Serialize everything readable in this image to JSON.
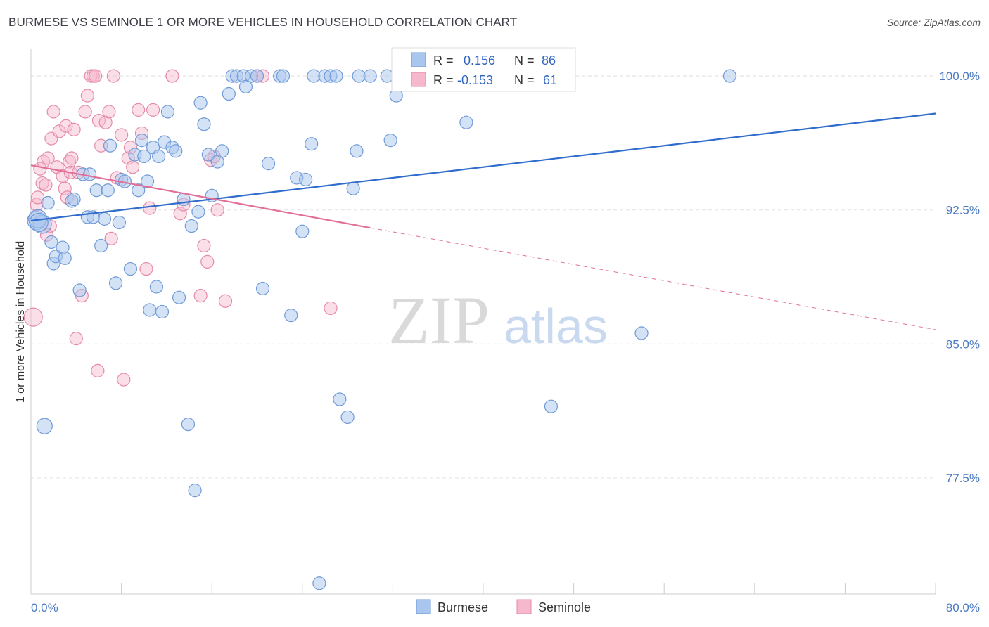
{
  "header": {
    "title": "BURMESE VS SEMINOLE 1 OR MORE VEHICLES IN HOUSEHOLD CORRELATION CHART",
    "source": "Source: ZipAtlas.com"
  },
  "watermark": {
    "zip": "ZIP",
    "atlas": "atlas"
  },
  "legend": {
    "rows": [
      {
        "r_label": "R =",
        "r_value": "0.156",
        "n_label": "N =",
        "n_value": "86"
      },
      {
        "r_label": "R =",
        "r_value": "-0.153",
        "n_label": "N =",
        "n_value": "61"
      }
    ]
  },
  "colors": {
    "burmese_fill": "#a9c6ee",
    "burmese_stroke": "#6f9ad8",
    "burmese_line": "#2f6ccc",
    "seminole_fill": "#f6b8cc",
    "seminole_stroke": "#e58aa8",
    "seminole_line": "#e0709a",
    "grid": "#e3e3e3",
    "tick_text": "#4a79c4"
  },
  "chart_data": {
    "type": "scatter",
    "title": "BURMESE VS SEMINOLE 1 OR MORE VEHICLES IN HOUSEHOLD CORRELATION CHART",
    "xlabel": "",
    "ylabel": "1 or more Vehicles in Household",
    "xlim": [
      0,
      80
    ],
    "ylim": [
      71,
      101.5
    ],
    "x_tick_labels": [
      "0.0%",
      "80.0%"
    ],
    "y_ticks": [
      77.5,
      85.0,
      92.5,
      100.0
    ],
    "y_tick_labels": [
      "77.5%",
      "85.0%",
      "92.5%",
      "100.0%"
    ],
    "grid": true,
    "legend_position": "top-center",
    "series": [
      {
        "name": "Burmese",
        "R": 0.156,
        "N": 86,
        "trend": {
          "x0": 0,
          "y0": 91.9,
          "x1": 80,
          "y1": 97.9
        },
        "points": [
          [
            0.5,
            91.9
          ],
          [
            1.0,
            91.7
          ],
          [
            0.6,
            92.0
          ],
          [
            1.5,
            92.9
          ],
          [
            1.8,
            90.7
          ],
          [
            2.0,
            89.5
          ],
          [
            2.2,
            89.9
          ],
          [
            2.8,
            90.4
          ],
          [
            3.0,
            89.8
          ],
          [
            3.6,
            93.0
          ],
          [
            3.8,
            93.1
          ],
          [
            4.3,
            88.0
          ],
          [
            4.6,
            94.5
          ],
          [
            5.0,
            92.1
          ],
          [
            5.2,
            94.5
          ],
          [
            5.5,
            92.1
          ],
          [
            5.8,
            93.6
          ],
          [
            6.2,
            90.5
          ],
          [
            6.5,
            92.0
          ],
          [
            6.8,
            93.6
          ],
          [
            7.0,
            96.1
          ],
          [
            7.5,
            88.4
          ],
          [
            7.8,
            91.8
          ],
          [
            8.0,
            94.2
          ],
          [
            8.3,
            94.1
          ],
          [
            8.8,
            89.2
          ],
          [
            9.2,
            95.6
          ],
          [
            9.5,
            93.6
          ],
          [
            9.8,
            96.4
          ],
          [
            10.0,
            95.5
          ],
          [
            10.3,
            94.1
          ],
          [
            10.5,
            86.9
          ],
          [
            10.8,
            96.0
          ],
          [
            11.1,
            88.2
          ],
          [
            11.3,
            95.5
          ],
          [
            11.6,
            86.8
          ],
          [
            11.8,
            96.3
          ],
          [
            12.1,
            98.0
          ],
          [
            12.5,
            96.0
          ],
          [
            12.8,
            95.8
          ],
          [
            13.1,
            87.6
          ],
          [
            13.5,
            93.1
          ],
          [
            13.9,
            80.5
          ],
          [
            14.2,
            91.6
          ],
          [
            14.5,
            76.8
          ],
          [
            14.8,
            92.4
          ],
          [
            15.0,
            98.5
          ],
          [
            15.3,
            97.3
          ],
          [
            15.7,
            95.6
          ],
          [
            16.0,
            93.3
          ],
          [
            16.5,
            95.2
          ],
          [
            16.9,
            95.8
          ],
          [
            17.5,
            99.0
          ],
          [
            17.8,
            100.0
          ],
          [
            18.2,
            100.0
          ],
          [
            18.8,
            100.0
          ],
          [
            19.0,
            99.4
          ],
          [
            19.5,
            100.0
          ],
          [
            20.0,
            100.0
          ],
          [
            20.5,
            88.1
          ],
          [
            21.0,
            95.1
          ],
          [
            22.0,
            100.0
          ],
          [
            22.3,
            100.0
          ],
          [
            23.0,
            86.6
          ],
          [
            23.5,
            94.3
          ],
          [
            24.0,
            91.3
          ],
          [
            24.3,
            94.2
          ],
          [
            24.8,
            96.2
          ],
          [
            25.0,
            100.0
          ],
          [
            25.5,
            71.6
          ],
          [
            26.0,
            100.0
          ],
          [
            26.5,
            100.0
          ],
          [
            27.0,
            100.0
          ],
          [
            27.3,
            81.9
          ],
          [
            28.0,
            80.9
          ],
          [
            28.5,
            93.7
          ],
          [
            28.8,
            95.8
          ],
          [
            29.0,
            100.0
          ],
          [
            30.0,
            100.0
          ],
          [
            31.5,
            100.0
          ],
          [
            31.8,
            96.4
          ],
          [
            32.3,
            98.9
          ],
          [
            38.5,
            97.4
          ],
          [
            46.0,
            81.5
          ],
          [
            54.0,
            85.6
          ],
          [
            61.8,
            100.0
          ],
          [
            1.2,
            80.4
          ],
          [
            0.7,
            91.8
          ]
        ]
      },
      {
        "name": "Seminole",
        "R": -0.153,
        "N": 61,
        "trend_solid": {
          "x0": 0,
          "y0": 95.0,
          "x1": 30,
          "y1": 91.5
        },
        "trend_dashed": {
          "x0": 30,
          "y0": 91.5,
          "x1": 80,
          "y1": 85.8
        },
        "points": [
          [
            0.2,
            86.5
          ],
          [
            0.5,
            92.8
          ],
          [
            0.6,
            93.2
          ],
          [
            0.8,
            94.8
          ],
          [
            1.0,
            94.0
          ],
          [
            1.1,
            95.2
          ],
          [
            1.3,
            93.9
          ],
          [
            1.5,
            95.4
          ],
          [
            1.7,
            91.6
          ],
          [
            1.8,
            96.5
          ],
          [
            2.0,
            98.0
          ],
          [
            2.3,
            94.9
          ],
          [
            2.5,
            96.9
          ],
          [
            2.8,
            94.4
          ],
          [
            3.0,
            93.7
          ],
          [
            3.1,
            97.2
          ],
          [
            3.4,
            95.2
          ],
          [
            3.5,
            94.6
          ],
          [
            3.6,
            95.4
          ],
          [
            3.8,
            97.0
          ],
          [
            4.0,
            85.3
          ],
          [
            4.2,
            94.6
          ],
          [
            4.5,
            87.7
          ],
          [
            4.8,
            98.0
          ],
          [
            5.0,
            98.9
          ],
          [
            5.3,
            100.0
          ],
          [
            5.5,
            100.0
          ],
          [
            5.7,
            100.0
          ],
          [
            5.9,
            83.5
          ],
          [
            6.0,
            97.5
          ],
          [
            6.2,
            96.1
          ],
          [
            6.6,
            97.4
          ],
          [
            6.9,
            98.0
          ],
          [
            7.1,
            90.9
          ],
          [
            7.3,
            100.0
          ],
          [
            7.6,
            94.3
          ],
          [
            8.0,
            96.7
          ],
          [
            8.2,
            83.0
          ],
          [
            8.6,
            95.4
          ],
          [
            8.8,
            96.0
          ],
          [
            9.0,
            94.9
          ],
          [
            9.5,
            98.1
          ],
          [
            9.8,
            96.8
          ],
          [
            10.2,
            89.2
          ],
          [
            10.5,
            92.6
          ],
          [
            10.8,
            98.1
          ],
          [
            12.5,
            100.0
          ],
          [
            13.2,
            92.3
          ],
          [
            13.5,
            92.8
          ],
          [
            15.0,
            87.7
          ],
          [
            15.3,
            90.5
          ],
          [
            15.6,
            89.6
          ],
          [
            15.9,
            95.3
          ],
          [
            16.2,
            95.5
          ],
          [
            16.5,
            92.5
          ],
          [
            17.2,
            87.4
          ],
          [
            20.0,
            100.0
          ],
          [
            20.5,
            100.0
          ],
          [
            26.5,
            87.0
          ],
          [
            3.2,
            93.2
          ],
          [
            1.4,
            91.1
          ]
        ]
      }
    ]
  },
  "bottom_legend": {
    "items": [
      {
        "label": "Burmese"
      },
      {
        "label": "Seminole"
      }
    ]
  }
}
